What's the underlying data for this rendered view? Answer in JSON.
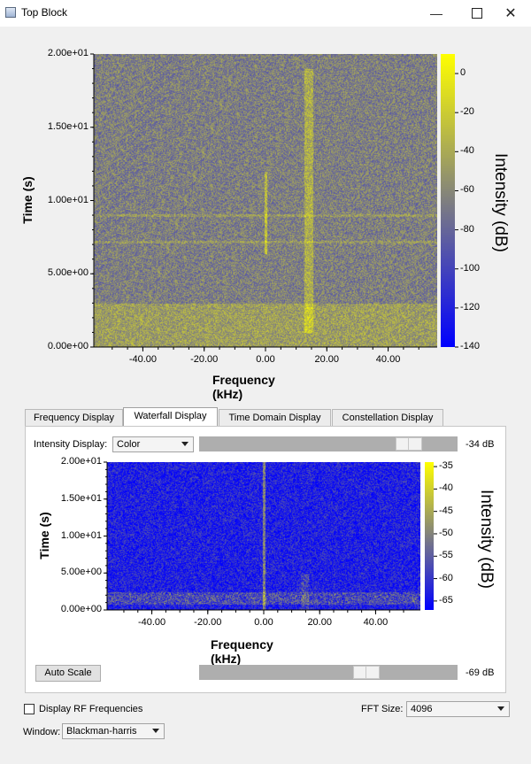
{
  "window": {
    "title": "Top Block",
    "icons": {
      "minimize": "minimize-icon",
      "maximize": "maximize-icon",
      "close": "close-icon"
    }
  },
  "top_plot": {
    "ylabel": "Time (s)",
    "xlabel": "Frequency (kHz)",
    "colorbar_label": "Intensity (dB)",
    "yticks": [
      "2.00e+01",
      "1.50e+01",
      "1.00e+01",
      "5.00e+00",
      "0.00e+00"
    ],
    "xticks": [
      "-40.00",
      "-20.00",
      "0.00",
      "20.00",
      "40.00"
    ],
    "cbar_ticks": [
      "0",
      "-20",
      "-40",
      "-60",
      "-80",
      "-100",
      "-120",
      "-140"
    ],
    "cbar_range": [
      -140,
      10
    ],
    "colormap": [
      "#0000ff",
      "#ffff00"
    ]
  },
  "tabs": [
    "Frequency Display",
    "Waterfall Display",
    "Time Domain Display",
    "Constellation Display"
  ],
  "active_tab": "Waterfall Display",
  "waterfall": {
    "intensity_label": "Intensity Display:",
    "intensity_value": "Color",
    "max_db": "-34 dB",
    "min_db": "-69 dB",
    "auto_scale": "Auto Scale",
    "ylabel": "Time (s)",
    "xlabel": "Frequency (kHz)",
    "colorbar_label": "Intensity (dB)",
    "yticks": [
      "2.00e+01",
      "1.50e+01",
      "1.00e+01",
      "5.00e+00",
      "0.00e+00"
    ],
    "xticks": [
      "-40.00",
      "-20.00",
      "0.00",
      "20.00",
      "40.00"
    ],
    "cbar_ticks": [
      "-35",
      "-40",
      "-45",
      "-50",
      "-55",
      "-60",
      "-65"
    ],
    "cbar_range": [
      -67,
      -34
    ]
  },
  "footer": {
    "rf_checkbox_label": "Display RF Frequencies",
    "rf_checked": false,
    "fft_label": "FFT Size:",
    "fft_value": "4096",
    "window_label": "Window:",
    "window_value": "Blackman-harris"
  }
}
